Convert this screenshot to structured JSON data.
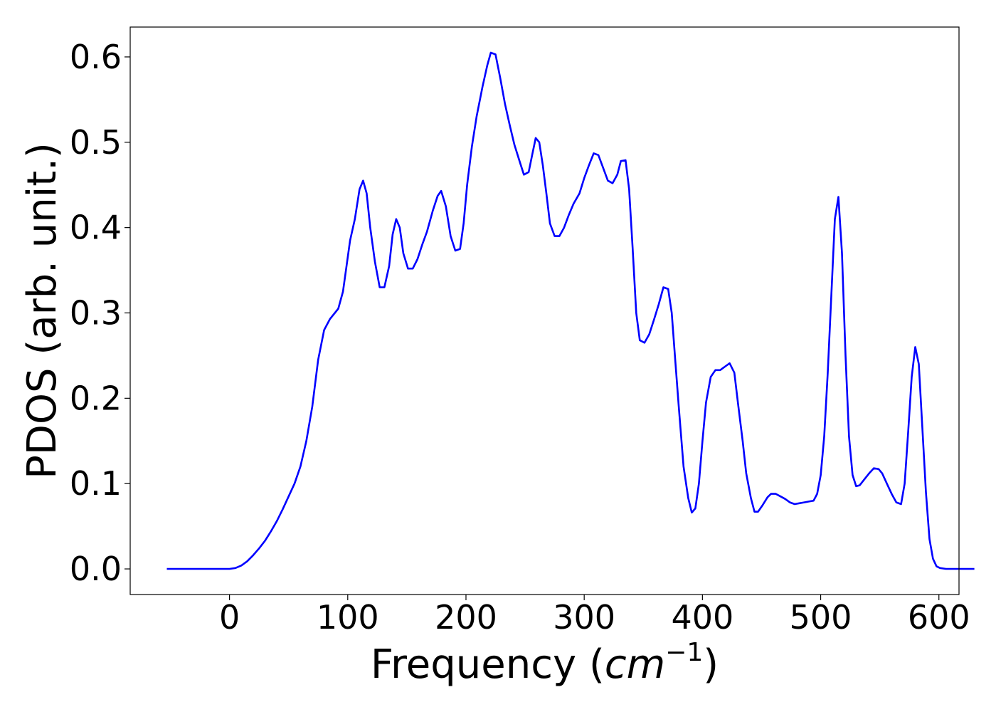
{
  "chart_data": {
    "type": "line",
    "xlabel": "Frequency (",
    "xlabel_unit_base": "cm",
    "xlabel_unit_exp": "−1",
    "xlabel_close": ")",
    "ylabel": "PDOS (arb. unit.)",
    "xlim": [
      -84,
      617
    ],
    "ylim": [
      -0.03,
      0.635
    ],
    "x_ticks": [
      0,
      100,
      200,
      300,
      400,
      500,
      600
    ],
    "x_tick_labels": [
      "0",
      "100",
      "200",
      "300",
      "400",
      "500",
      "600"
    ],
    "y_ticks": [
      0.0,
      0.1,
      0.2,
      0.3,
      0.4,
      0.5,
      0.6
    ],
    "y_tick_labels": [
      "0.0",
      "0.1",
      "0.2",
      "0.3",
      "0.4",
      "0.5",
      "0.6"
    ],
    "grid": false,
    "series": [
      {
        "color": "#0000ff",
        "points": [
          [
            -53,
            0.0
          ],
          [
            -5,
            0.0
          ],
          [
            0,
            0.0
          ],
          [
            5,
            0.001
          ],
          [
            10,
            0.004
          ],
          [
            15,
            0.009
          ],
          [
            20,
            0.016
          ],
          [
            25,
            0.024
          ],
          [
            30,
            0.033
          ],
          [
            35,
            0.044
          ],
          [
            40,
            0.056
          ],
          [
            45,
            0.07
          ],
          [
            50,
            0.085
          ],
          [
            55,
            0.1
          ],
          [
            60,
            0.12
          ],
          [
            65,
            0.15
          ],
          [
            70,
            0.19
          ],
          [
            75,
            0.245
          ],
          [
            80,
            0.28
          ],
          [
            85,
            0.293
          ],
          [
            92,
            0.305
          ],
          [
            96,
            0.325
          ],
          [
            102,
            0.385
          ],
          [
            106,
            0.41
          ],
          [
            110,
            0.445
          ],
          [
            113,
            0.455
          ],
          [
            116,
            0.44
          ],
          [
            119,
            0.4
          ],
          [
            123,
            0.36
          ],
          [
            127,
            0.33
          ],
          [
            131,
            0.33
          ],
          [
            135,
            0.355
          ],
          [
            138,
            0.392
          ],
          [
            141,
            0.41
          ],
          [
            144,
            0.4
          ],
          [
            147,
            0.37
          ],
          [
            151,
            0.352
          ],
          [
            155,
            0.352
          ],
          [
            159,
            0.363
          ],
          [
            163,
            0.38
          ],
          [
            167,
            0.395
          ],
          [
            172,
            0.42
          ],
          [
            176,
            0.437
          ],
          [
            179,
            0.443
          ],
          [
            183,
            0.425
          ],
          [
            187,
            0.39
          ],
          [
            191,
            0.373
          ],
          [
            195,
            0.375
          ],
          [
            198,
            0.405
          ],
          [
            201,
            0.45
          ],
          [
            205,
            0.495
          ],
          [
            209,
            0.53
          ],
          [
            214,
            0.565
          ],
          [
            218,
            0.59
          ],
          [
            221,
            0.605
          ],
          [
            225,
            0.603
          ],
          [
            229,
            0.575
          ],
          [
            233,
            0.545
          ],
          [
            237,
            0.52
          ],
          [
            241,
            0.497
          ],
          [
            246,
            0.475
          ],
          [
            249,
            0.462
          ],
          [
            253,
            0.465
          ],
          [
            256,
            0.485
          ],
          [
            259,
            0.505
          ],
          [
            262,
            0.5
          ],
          [
            265,
            0.473
          ],
          [
            268,
            0.44
          ],
          [
            271,
            0.405
          ],
          [
            275,
            0.39
          ],
          [
            279,
            0.39
          ],
          [
            283,
            0.4
          ],
          [
            287,
            0.415
          ],
          [
            291,
            0.428
          ],
          [
            296,
            0.44
          ],
          [
            300,
            0.458
          ],
          [
            304,
            0.473
          ],
          [
            308,
            0.487
          ],
          [
            312,
            0.485
          ],
          [
            316,
            0.47
          ],
          [
            320,
            0.455
          ],
          [
            324,
            0.452
          ],
          [
            328,
            0.462
          ],
          [
            331,
            0.478
          ],
          [
            335,
            0.479
          ],
          [
            338,
            0.445
          ],
          [
            341,
            0.375
          ],
          [
            344,
            0.3
          ],
          [
            347,
            0.268
          ],
          [
            351,
            0.265
          ],
          [
            355,
            0.275
          ],
          [
            359,
            0.292
          ],
          [
            363,
            0.31
          ],
          [
            367,
            0.33
          ],
          [
            371,
            0.328
          ],
          [
            374,
            0.3
          ],
          [
            377,
            0.245
          ],
          [
            380,
            0.19
          ],
          [
            384,
            0.12
          ],
          [
            388,
            0.083
          ],
          [
            391,
            0.066
          ],
          [
            394,
            0.071
          ],
          [
            397,
            0.1
          ],
          [
            400,
            0.15
          ],
          [
            403,
            0.195
          ],
          [
            407,
            0.225
          ],
          [
            411,
            0.233
          ],
          [
            415,
            0.233
          ],
          [
            419,
            0.237
          ],
          [
            423,
            0.241
          ],
          [
            427,
            0.23
          ],
          [
            430,
            0.195
          ],
          [
            434,
            0.15
          ],
          [
            437,
            0.112
          ],
          [
            441,
            0.083
          ],
          [
            444,
            0.067
          ],
          [
            447,
            0.067
          ],
          [
            451,
            0.075
          ],
          [
            455,
            0.084
          ],
          [
            458,
            0.088
          ],
          [
            462,
            0.088
          ],
          [
            466,
            0.085
          ],
          [
            470,
            0.082
          ],
          [
            474,
            0.078
          ],
          [
            478,
            0.076
          ],
          [
            482,
            0.077
          ],
          [
            486,
            0.078
          ],
          [
            490,
            0.079
          ],
          [
            494,
            0.08
          ],
          [
            497,
            0.088
          ],
          [
            500,
            0.11
          ],
          [
            503,
            0.155
          ],
          [
            506,
            0.23
          ],
          [
            509,
            0.32
          ],
          [
            512,
            0.41
          ],
          [
            515,
            0.436
          ],
          [
            518,
            0.37
          ],
          [
            521,
            0.25
          ],
          [
            524,
            0.155
          ],
          [
            527,
            0.11
          ],
          [
            530,
            0.097
          ],
          [
            533,
            0.098
          ],
          [
            537,
            0.105
          ],
          [
            541,
            0.112
          ],
          [
            545,
            0.118
          ],
          [
            549,
            0.117
          ],
          [
            552,
            0.112
          ],
          [
            556,
            0.1
          ],
          [
            560,
            0.088
          ],
          [
            564,
            0.078
          ],
          [
            568,
            0.076
          ],
          [
            571,
            0.1
          ],
          [
            574,
            0.16
          ],
          [
            577,
            0.225
          ],
          [
            580,
            0.26
          ],
          [
            583,
            0.24
          ],
          [
            586,
            0.165
          ],
          [
            589,
            0.09
          ],
          [
            592,
            0.035
          ],
          [
            595,
            0.012
          ],
          [
            598,
            0.003
          ],
          [
            601,
            0.001
          ],
          [
            606,
            0.0
          ],
          [
            630,
            0.0
          ]
        ]
      }
    ]
  }
}
